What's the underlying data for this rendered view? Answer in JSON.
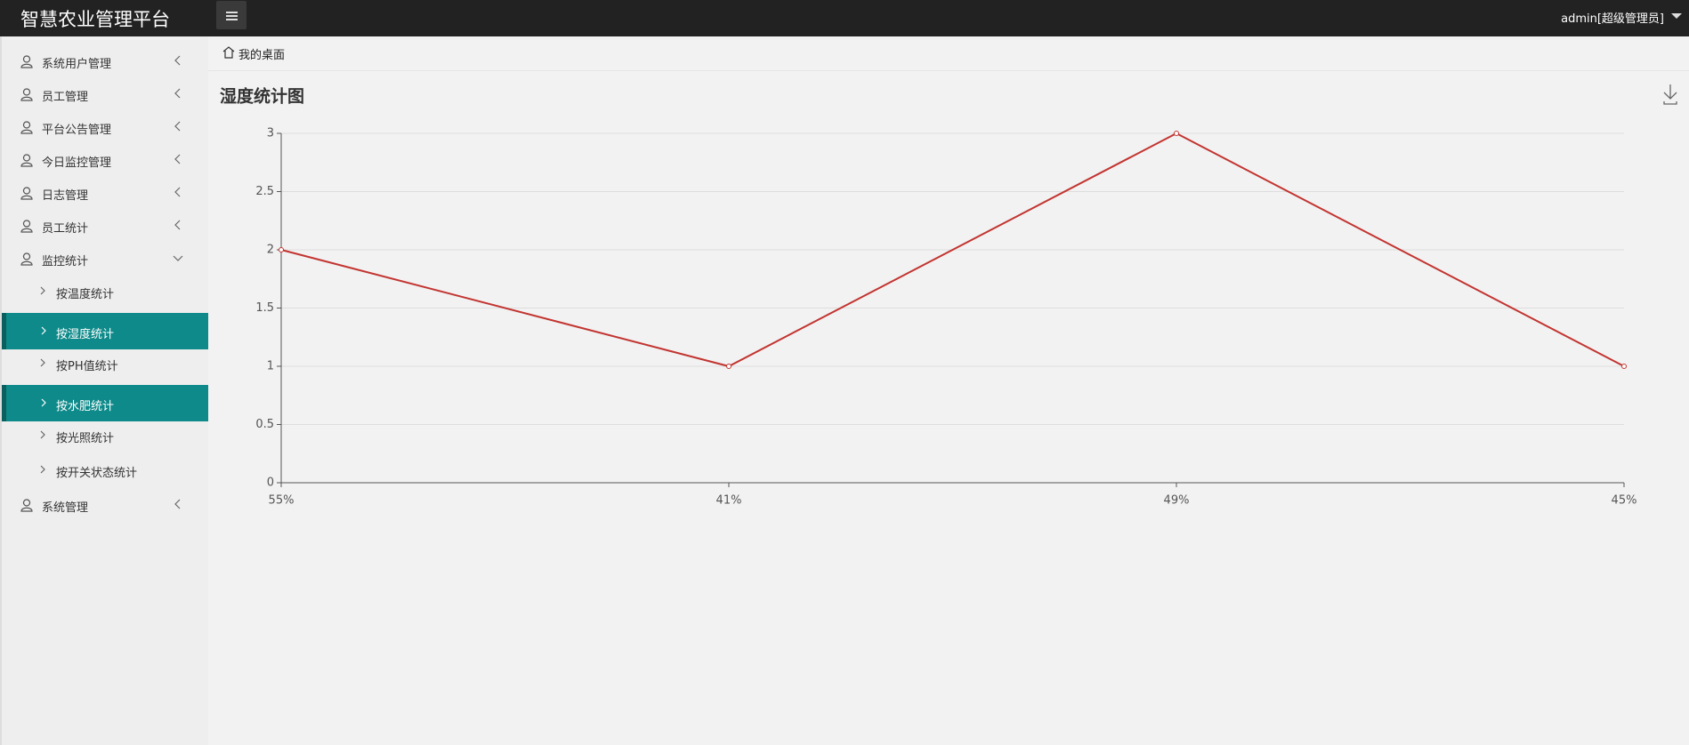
{
  "header": {
    "title": "智慧农业管理平台",
    "user": "admin[超级管理员]"
  },
  "menu": [
    {
      "label": "系统用户管理"
    },
    {
      "label": "员工管理"
    },
    {
      "label": "平台公告管理"
    },
    {
      "label": "今日监控管理"
    },
    {
      "label": "日志管理"
    },
    {
      "label": "员工统计"
    },
    {
      "label": "监控统计",
      "expanded": true,
      "children": [
        {
          "label": "按温度统计",
          "selected": false
        },
        {
          "label": "按湿度统计",
          "selected": true
        },
        {
          "label": "按PH值统计",
          "selected": false
        },
        {
          "label": "按水肥统计",
          "selected": true
        },
        {
          "label": "按光照统计",
          "selected": false
        },
        {
          "label": "按开关状态统计",
          "selected": false
        }
      ]
    },
    {
      "label": "系统管理"
    }
  ],
  "breadcrumb": "我的桌面",
  "chart_data": {
    "type": "line",
    "title": "湿度统计图",
    "categories": [
      "55%",
      "41%",
      "49%",
      "45%"
    ],
    "values": [
      2,
      1,
      3,
      1
    ],
    "color": "#c23531",
    "ylim": [
      0,
      3
    ],
    "yticks": [
      0,
      0.5,
      1,
      1.5,
      2,
      2.5,
      3
    ],
    "grid": true
  }
}
